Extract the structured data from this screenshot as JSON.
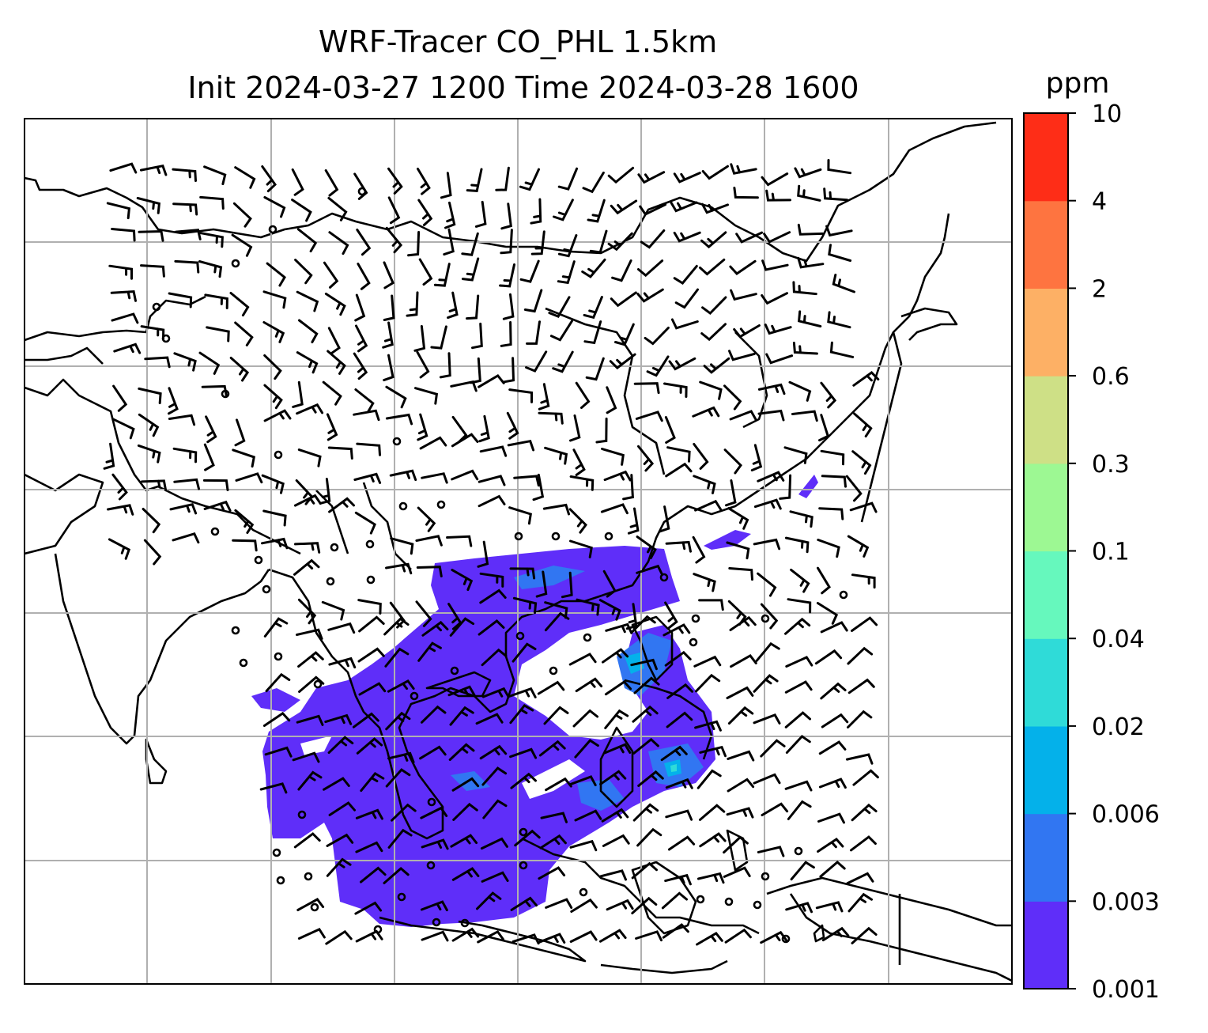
{
  "title_line1": "WRF-Tracer CO_PHL 1.5km",
  "title_line2": "Init 2024-03-27 1200 Time 2024-03-28 1600",
  "colorbar": {
    "unit": "ppm",
    "levels": [
      "0.001",
      "0.003",
      "0.006",
      "0.02",
      "0.04",
      "0.1",
      "0.3",
      "0.6",
      "2",
      "4",
      "10"
    ],
    "colors": [
      "#5f2ef9",
      "#3176f2",
      "#04b1ea",
      "#2fdbd8",
      "#66f8bd",
      "#9df893",
      "#cee086",
      "#fdb065",
      "#fe7440",
      "#fe2d17"
    ]
  },
  "map": {
    "coastline_color": "#000000",
    "gridline_color": "#b0b0b0",
    "barb_color": "#000000"
  }
}
